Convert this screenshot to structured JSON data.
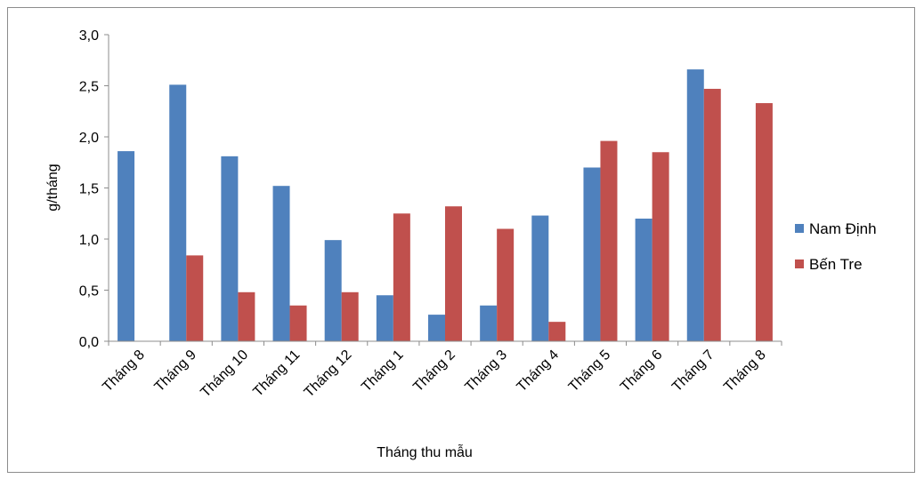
{
  "chart_data": {
    "type": "bar",
    "xlabel": "Tháng thu mẫu",
    "ylabel": "g/tháng",
    "ylim": [
      0,
      3
    ],
    "yticks": [
      "0,0",
      "0,5",
      "1,0",
      "1,5",
      "2,0",
      "2,5",
      "3,0"
    ],
    "categories": [
      "Tháng 8",
      "Tháng 9",
      "Tháng 10",
      "Tháng 11",
      "Tháng 12",
      "Tháng 1",
      "Tháng 2",
      "Tháng 3",
      "Tháng 4",
      "Tháng 5",
      "Tháng 6",
      "Tháng 7",
      "Tháng 8"
    ],
    "series": [
      {
        "name": "Nam Định",
        "color": "#4F81BD",
        "values": [
          1.86,
          2.51,
          1.81,
          1.52,
          0.99,
          0.45,
          0.26,
          0.35,
          1.23,
          1.7,
          1.2,
          2.66,
          null
        ]
      },
      {
        "name": "Bến Tre",
        "color": "#C0504D",
        "values": [
          null,
          0.84,
          0.48,
          0.35,
          0.48,
          1.25,
          1.32,
          1.1,
          0.19,
          1.96,
          1.85,
          2.47,
          2.33
        ]
      }
    ],
    "grid": false,
    "legend": "right"
  }
}
